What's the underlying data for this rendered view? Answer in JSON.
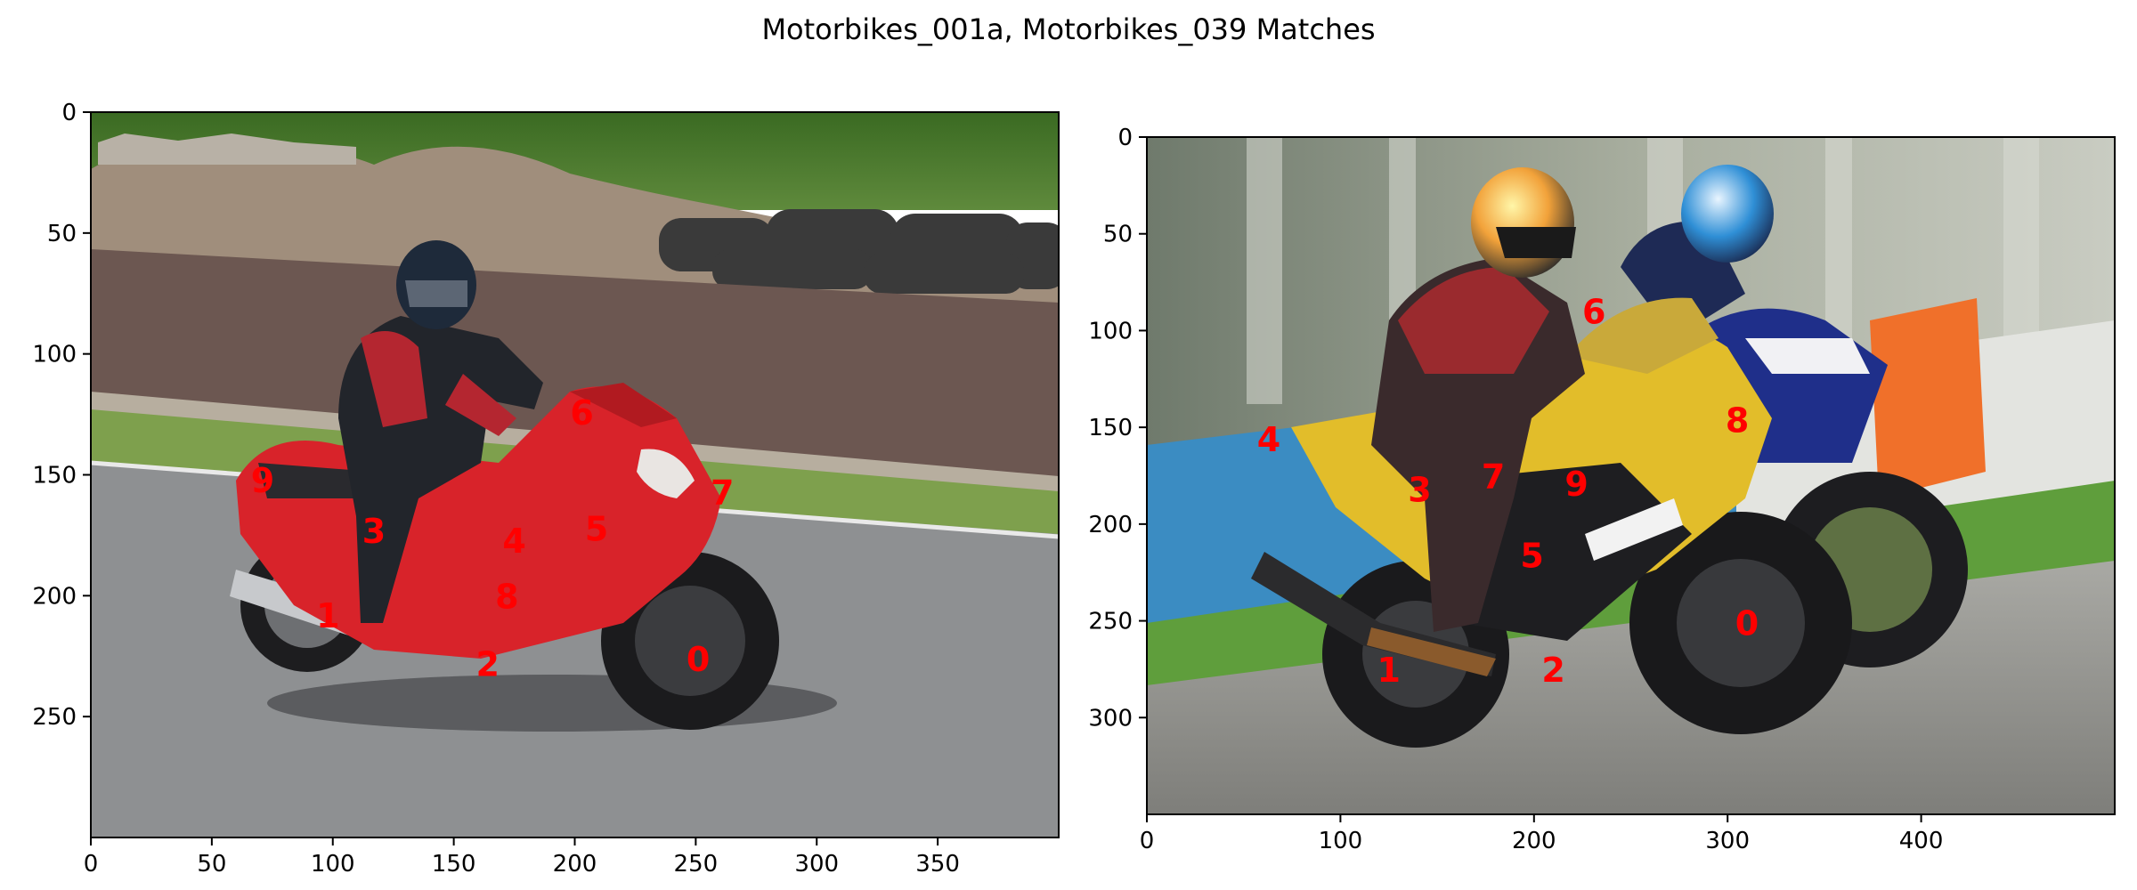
{
  "figure": {
    "title": "Motorbikes_001a, Motorbikes_039 Matches",
    "label_color": "#ff0000"
  },
  "chart_data": [
    {
      "type": "scatter",
      "title": "",
      "xlabel": "",
      "ylabel": "",
      "image": {
        "width": 400,
        "height": 300,
        "description_colors": {
          "sky_foliage": "#3f6e2a",
          "dirt": "#9a8a78",
          "track": "#6a5550",
          "grass": "#7fa04f",
          "asphalt": "#8c8e90",
          "bike": "#d8232a",
          "rider": "#23262c"
        }
      },
      "xlim": [
        0,
        400
      ],
      "ylim": [
        300,
        0
      ],
      "xticks": [
        0,
        50,
        100,
        150,
        200,
        250,
        300,
        350
      ],
      "yticks": [
        0,
        50,
        100,
        150,
        200,
        250
      ],
      "points": [
        {
          "label": "0",
          "x": 251,
          "y": 226
        },
        {
          "label": "1",
          "x": 98,
          "y": 208
        },
        {
          "label": "2",
          "x": 164,
          "y": 228
        },
        {
          "label": "3",
          "x": 117,
          "y": 173
        },
        {
          "label": "4",
          "x": 175,
          "y": 177
        },
        {
          "label": "5",
          "x": 209,
          "y": 172
        },
        {
          "label": "6",
          "x": 203,
          "y": 124
        },
        {
          "label": "7",
          "x": 261,
          "y": 157
        },
        {
          "label": "8",
          "x": 172,
          "y": 200
        },
        {
          "label": "9",
          "x": 71,
          "y": 152
        }
      ]
    },
    {
      "type": "scatter",
      "title": "",
      "xlabel": "",
      "ylabel": "",
      "image": {
        "width": 500,
        "height": 350,
        "description_colors": {
          "background": "#8d9a86",
          "grass": "#5e9e3c",
          "wall": "#3a8bbf",
          "road": "#9a9a96",
          "yellow_bike": "#e7c12a",
          "blue_bike": "#1f2f8a",
          "rider": "#8b2a2a"
        }
      },
      "xlim": [
        0,
        500
      ],
      "ylim": [
        350,
        0
      ],
      "xticks": [
        0,
        100,
        200,
        300,
        400
      ],
      "yticks": [
        0,
        50,
        100,
        150,
        200,
        250,
        300
      ],
      "points": [
        {
          "label": "0",
          "x": 310,
          "y": 251
        },
        {
          "label": "1",
          "x": 125,
          "y": 275
        },
        {
          "label": "2",
          "x": 210,
          "y": 275
        },
        {
          "label": "3",
          "x": 141,
          "y": 182
        },
        {
          "label": "4",
          "x": 63,
          "y": 156
        },
        {
          "label": "5",
          "x": 199,
          "y": 216
        },
        {
          "label": "6",
          "x": 231,
          "y": 90
        },
        {
          "label": "7",
          "x": 179,
          "y": 175
        },
        {
          "label": "8",
          "x": 305,
          "y": 146
        },
        {
          "label": "9",
          "x": 222,
          "y": 179
        }
      ]
    }
  ]
}
